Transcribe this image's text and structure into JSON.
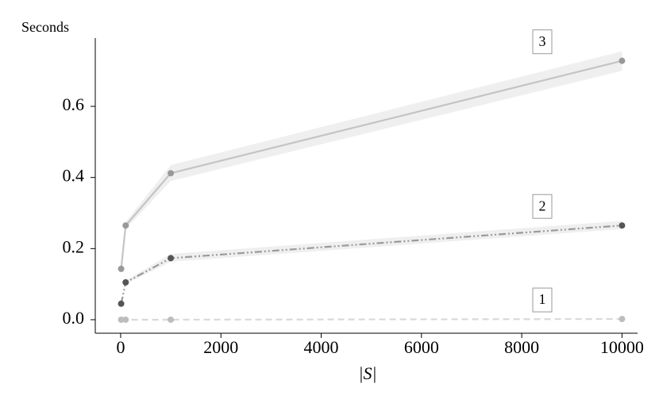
{
  "chart_data": {
    "type": "line",
    "y_label": "Seconds",
    "x_label": "|S|",
    "x": [
      10,
      100,
      1000,
      10000
    ],
    "series": [
      {
        "name": "1",
        "color": "#d9d9d9",
        "marker_color": "#bdbdbd",
        "linestyle": "dashed",
        "values": [
          0,
          0,
          0,
          0.002
        ]
      },
      {
        "name": "2",
        "color": "#9a9a9a",
        "marker_color": "#555555",
        "linestyle": "dashdotdot",
        "values": [
          0.045,
          0.105,
          0.173,
          0.265
        ],
        "lower": [
          null,
          0.1,
          0.163,
          0.255
        ],
        "upper": [
          null,
          0.11,
          0.185,
          0.278
        ]
      },
      {
        "name": "3",
        "color": "#c4c4c4",
        "marker_color": "#999999",
        "linestyle": "solid",
        "values": [
          0.143,
          0.265,
          0.412,
          0.728
        ],
        "lower": [
          null,
          0.255,
          0.39,
          0.7
        ],
        "upper": [
          null,
          0.275,
          0.435,
          0.755
        ]
      }
    ],
    "xlim": [
      -506,
      10310
    ],
    "xticks": [
      0,
      2000,
      4000,
      6000,
      8000,
      10000
    ],
    "ylim": [
      -0.038,
      0.792
    ],
    "yticks": [
      {
        "value": 0,
        "label": "0.0"
      },
      {
        "value": 0.2,
        "label": "0.2"
      },
      {
        "value": 0.4,
        "label": "0.4"
      },
      {
        "value": 0.6,
        "label": "0.6"
      }
    ]
  }
}
